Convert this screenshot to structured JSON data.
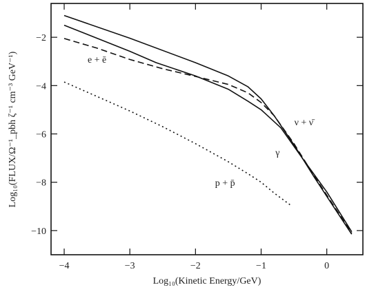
{
  "chart_data": {
    "type": "line",
    "title": "",
    "xlabel": "Log₁₀(Kinetic Energy/GeV)",
    "ylabel": "Log₁₀(FLUX/Ω⁻¹_pbh ζ⁻¹ cm⁻³ GeV⁻¹)",
    "xlim": [
      -4.2,
      0.55
    ],
    "ylim": [
      -11.0,
      -0.6
    ],
    "xticks": [
      -4,
      -3,
      -2,
      -1,
      0
    ],
    "yticks": [
      -10,
      -8,
      -6,
      -4,
      -2
    ],
    "xtick_labels": [
      "−4",
      "−3",
      "−2",
      "−1",
      "0"
    ],
    "ytick_labels": [
      "−10",
      "−8",
      "−6",
      "−4",
      "−2"
    ],
    "grid": false,
    "legend": "none",
    "series": [
      {
        "name": "ν + ν̄",
        "style": "solid",
        "points": [
          [
            -4.0,
            -1.1
          ],
          [
            -3.0,
            -2.04
          ],
          [
            -2.0,
            -3.05
          ],
          [
            -1.5,
            -3.6
          ],
          [
            -1.2,
            -4.05
          ],
          [
            -1.0,
            -4.55
          ],
          [
            -0.8,
            -5.25
          ],
          [
            -0.5,
            -6.45
          ],
          [
            -0.2,
            -7.75
          ],
          [
            0.1,
            -9.0
          ],
          [
            0.38,
            -10.15
          ]
        ]
      },
      {
        "name": "γ",
        "style": "solid",
        "points": [
          [
            -4.0,
            -1.5
          ],
          [
            -3.0,
            -2.58
          ],
          [
            -2.6,
            -3.05
          ],
          [
            -2.0,
            -3.6
          ],
          [
            -1.5,
            -4.15
          ],
          [
            -1.2,
            -4.65
          ],
          [
            -1.0,
            -5.0
          ],
          [
            -0.7,
            -5.75
          ],
          [
            -0.4,
            -6.9
          ],
          [
            0.0,
            -8.4
          ],
          [
            0.38,
            -10.05
          ]
        ]
      },
      {
        "name": "e + ē",
        "style": "dashed",
        "points": [
          [
            -4.0,
            -2.05
          ],
          [
            -3.5,
            -2.45
          ],
          [
            -3.0,
            -2.92
          ],
          [
            -2.5,
            -3.3
          ],
          [
            -2.0,
            -3.62
          ],
          [
            -1.5,
            -3.95
          ],
          [
            -1.2,
            -4.3
          ],
          [
            -1.0,
            -4.7
          ],
          [
            -0.8,
            -5.25
          ],
          [
            -0.5,
            -6.4
          ],
          [
            -0.2,
            -7.7
          ],
          [
            0.1,
            -8.95
          ],
          [
            0.38,
            -10.1
          ]
        ]
      },
      {
        "name": "p + p̄",
        "style": "dotted",
        "points": [
          [
            -4.0,
            -3.85
          ],
          [
            -3.5,
            -4.45
          ],
          [
            -3.0,
            -5.05
          ],
          [
            -2.5,
            -5.7
          ],
          [
            -2.0,
            -6.4
          ],
          [
            -1.5,
            -7.15
          ],
          [
            -1.2,
            -7.65
          ],
          [
            -1.0,
            -8.0
          ],
          [
            -0.8,
            -8.45
          ],
          [
            -0.55,
            -8.95
          ]
        ]
      }
    ],
    "annotations": [
      {
        "text": "e + ē",
        "x": -3.5,
        "y": -3.05
      },
      {
        "text": "ν + ν̄",
        "x": -0.35,
        "y": -5.65
      },
      {
        "text": "γ",
        "x": -0.75,
        "y": -6.9
      },
      {
        "text": "p + p̄",
        "x": -1.55,
        "y": -8.15
      }
    ]
  }
}
